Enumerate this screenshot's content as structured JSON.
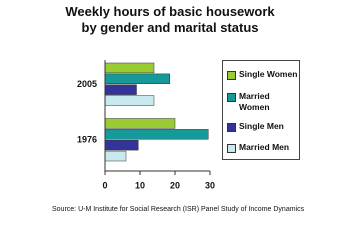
{
  "chart_data": {
    "type": "barh",
    "title": "Weekly hours of basic housework by gender and marital status",
    "source": "Source:  U-M Institute for Social Research (ISR) Panel Study of Income Dynamics",
    "categories": [
      "2005",
      "1976"
    ],
    "series": [
      {
        "name": "Single Women",
        "color": "#99cc33",
        "values": [
          14,
          20
        ]
      },
      {
        "name": "Married Women",
        "color": "#17999a",
        "values": [
          18.5,
          29.5
        ]
      },
      {
        "name": "Single Men",
        "color": "#333399",
        "values": [
          9,
          9.5
        ]
      },
      {
        "name": "Married Men",
        "color": "#c8eaee",
        "values": [
          14,
          6
        ]
      }
    ],
    "xlim": [
      0,
      30
    ],
    "xticks": [
      0,
      10,
      20,
      30
    ],
    "grid": false,
    "legend": "right"
  }
}
